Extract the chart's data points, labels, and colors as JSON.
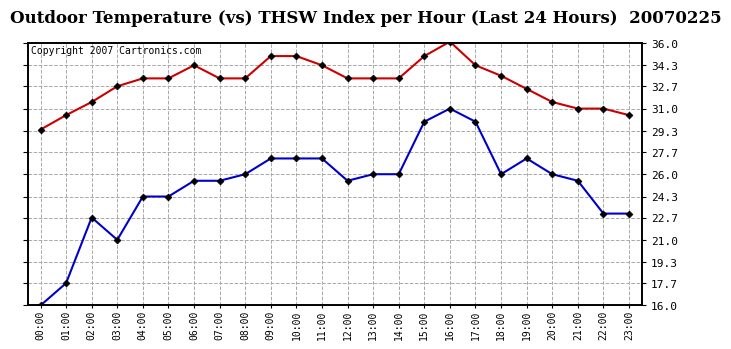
{
  "title": "Outdoor Temperature (vs) THSW Index per Hour (Last 24 Hours)  20070225",
  "copyright_text": "Copyright 2007 Cartronics.com",
  "hours": [
    "00:00",
    "01:00",
    "02:00",
    "03:00",
    "04:00",
    "05:00",
    "06:00",
    "07:00",
    "08:00",
    "09:00",
    "10:00",
    "11:00",
    "12:00",
    "13:00",
    "14:00",
    "15:00",
    "16:00",
    "17:00",
    "18:00",
    "19:00",
    "20:00",
    "21:00",
    "22:00",
    "23:00"
  ],
  "thsw": [
    29.4,
    30.5,
    31.5,
    32.7,
    33.3,
    33.3,
    34.3,
    33.3,
    33.3,
    35.0,
    35.0,
    34.3,
    33.3,
    33.3,
    33.3,
    35.0,
    36.1,
    34.3,
    33.5,
    32.5,
    31.5,
    31.0,
    31.0,
    30.5
  ],
  "temp": [
    16.0,
    17.7,
    22.7,
    21.0,
    24.3,
    24.3,
    25.5,
    25.5,
    26.0,
    27.2,
    27.2,
    27.2,
    25.5,
    26.0,
    26.0,
    30.0,
    31.0,
    30.0,
    26.0,
    27.2,
    26.0,
    25.5,
    23.0,
    23.0
  ],
  "thsw_color": "#cc0000",
  "temp_color": "#0000cc",
  "bg_color": "#ffffff",
  "grid_color": "#aaaaaa",
  "ylim": [
    16.0,
    36.0
  ],
  "yticks": [
    16.0,
    17.7,
    19.3,
    21.0,
    22.7,
    24.3,
    26.0,
    27.7,
    29.3,
    31.0,
    32.7,
    34.3,
    36.0
  ],
  "title_fontsize": 12,
  "copyright_fontsize": 7,
  "marker": "D",
  "marker_size": 3.5,
  "linewidth": 1.5
}
